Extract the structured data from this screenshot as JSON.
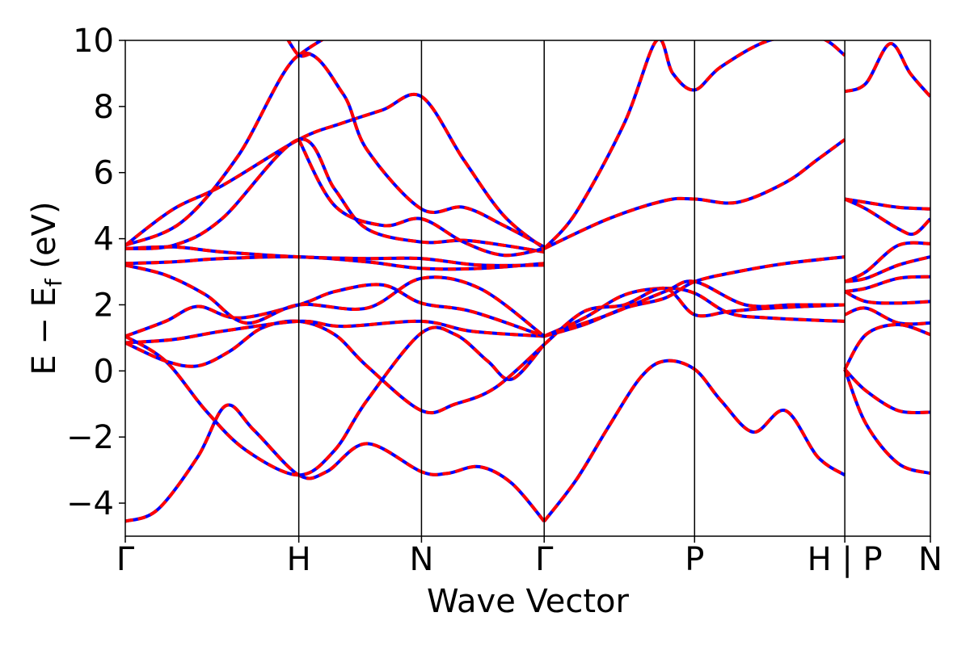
{
  "chart_data": {
    "type": "line",
    "title": "",
    "xlabel": "Wave Vector",
    "ylabel_parts": {
      "main": "E − E",
      "sub": "f",
      "unit": " (eV)"
    },
    "ylim": [
      -5,
      10
    ],
    "yticks": [
      -4,
      -2,
      0,
      2,
      4,
      6,
      8,
      10
    ],
    "ytick_labels": [
      "−4",
      "−2",
      "0",
      "2",
      "4",
      "6",
      "8",
      "10"
    ],
    "xlim": [
      0,
      1
    ],
    "kpoints": [
      {
        "label": "Γ",
        "x": 0.0
      },
      {
        "label": "H",
        "x": 0.2155
      },
      {
        "label": "N",
        "x": 0.3679
      },
      {
        "label": "Γ",
        "x": 0.5203
      },
      {
        "label": "P",
        "x": 0.7071
      },
      {
        "label": "H | P",
        "x": 0.8937
      },
      {
        "label": "N",
        "x": 1.0
      }
    ],
    "series_style": [
      {
        "color": "#0000ff",
        "dashed": false
      },
      {
        "color": "#ff0000",
        "dashed": true
      }
    ],
    "bands": [
      {
        "x": [
          0,
          0.04,
          0.09,
          0.125,
          0.16,
          0.2155,
          0.25,
          0.3,
          0.3679,
          0.4,
          0.44,
          0.48,
          0.5203
        ],
        "y": [
          -4.55,
          -4.2,
          -2.6,
          -1.05,
          -1.8,
          -3.15,
          -3.05,
          -2.2,
          -3.05,
          -3.1,
          -2.9,
          -3.4,
          -4.55
        ]
      },
      {
        "x": [
          0.5203,
          0.56,
          0.6,
          0.64,
          0.67,
          0.7071,
          0.74,
          0.78,
          0.82,
          0.86,
          0.8937
        ],
        "y": [
          -4.55,
          -3.3,
          -1.7,
          -0.2,
          0.3,
          0.05,
          -0.9,
          -1.85,
          -1.2,
          -2.6,
          -3.15
        ]
      },
      {
        "x": [
          0.8937,
          0.92,
          0.96,
          1.0
        ],
        "y": [
          0.05,
          -0.6,
          -1.2,
          -1.25
        ]
      },
      {
        "x": [
          0.0,
          0.05,
          0.1,
          0.15,
          0.2155,
          0.26,
          0.3,
          0.3679,
          0.41,
          0.45,
          0.48,
          0.5203
        ],
        "y": [
          1.05,
          0.3,
          -1.2,
          -2.4,
          -3.15,
          -2.4,
          -0.9,
          1.15,
          1.1,
          0.3,
          -0.25,
          0.8
        ]
      },
      {
        "x": [
          0.0,
          0.05,
          0.09,
          0.13,
          0.17,
          0.2155,
          0.26,
          0.3,
          0.3679,
          0.41,
          0.46,
          0.5203
        ],
        "y": [
          0.85,
          0.3,
          0.15,
          0.6,
          1.3,
          1.5,
          1.1,
          0.15,
          -1.2,
          -1.0,
          -0.5,
          0.8
        ]
      },
      {
        "x": [
          0.0,
          0.06,
          0.12,
          0.2155,
          0.27,
          0.3679,
          0.43,
          0.5203
        ],
        "y": [
          0.85,
          0.95,
          1.2,
          1.5,
          1.35,
          1.5,
          1.2,
          1.05
        ]
      },
      {
        "x": [
          0.0,
          0.05,
          0.09,
          0.14,
          0.2155,
          0.26,
          0.32,
          0.3679,
          0.43,
          0.5203
        ],
        "y": [
          1.05,
          1.5,
          1.95,
          1.6,
          2.0,
          2.4,
          2.6,
          2.05,
          1.8,
          1.05
        ]
      },
      {
        "x": [
          0.0,
          0.05,
          0.1,
          0.15,
          0.2155,
          0.3,
          0.3679,
          0.44,
          0.5203
        ],
        "y": [
          3.2,
          2.9,
          2.3,
          1.45,
          2.0,
          1.9,
          2.8,
          2.5,
          1.05
        ]
      },
      {
        "x": [
          0.5203,
          0.57,
          0.62,
          0.67,
          0.7071,
          0.75,
          0.8,
          0.8937
        ],
        "y": [
          1.05,
          1.6,
          2.3,
          2.5,
          2.35,
          1.75,
          1.6,
          1.5
        ]
      },
      {
        "x": [
          0.5203,
          0.57,
          0.62,
          0.67,
          0.7071,
          0.75,
          0.8,
          0.8937
        ],
        "y": [
          0.8,
          1.8,
          2.0,
          2.5,
          1.7,
          1.8,
          1.9,
          2.0
        ]
      },
      {
        "x": [
          0.5203,
          0.57,
          0.62,
          0.67,
          0.7071,
          0.76,
          0.82,
          0.8937
        ],
        "y": [
          1.05,
          1.4,
          1.9,
          2.2,
          2.7,
          3.0,
          3.25,
          3.45
        ]
      },
      {
        "x": [
          0.5203,
          0.6,
          0.67,
          0.7071,
          0.77,
          0.83,
          0.8937
        ],
        "y": [
          1.05,
          1.7,
          2.4,
          2.7,
          2.0,
          2.0,
          2.0
        ]
      },
      {
        "x": [
          0.0,
          0.06,
          0.12,
          0.2155,
          0.3,
          0.3679,
          0.44,
          0.5203
        ],
        "y": [
          3.25,
          3.3,
          3.4,
          3.45,
          3.3,
          3.1,
          3.1,
          3.25
        ]
      },
      {
        "x": [
          0.0,
          0.06,
          0.12,
          0.2155,
          0.3,
          0.3679,
          0.44,
          0.5203
        ],
        "y": [
          3.7,
          3.75,
          3.6,
          3.45,
          3.4,
          3.4,
          3.2,
          3.2
        ]
      },
      {
        "x": [
          0.0,
          0.06,
          0.12,
          0.2155,
          0.27,
          0.32,
          0.3679,
          0.42,
          0.47,
          0.5203
        ],
        "y": [
          3.8,
          4.9,
          5.6,
          7.0,
          7.5,
          7.9,
          8.3,
          6.4,
          4.7,
          3.7
        ]
      },
      {
        "x": [
          0.0,
          0.06,
          0.12,
          0.2155,
          0.26,
          0.3,
          0.3679,
          0.42,
          0.47,
          0.5203
        ],
        "y": [
          3.7,
          3.8,
          4.6,
          7.0,
          5.5,
          4.3,
          3.9,
          3.95,
          3.8,
          3.6
        ]
      },
      {
        "x": [
          0.0,
          0.07,
          0.14,
          0.2155,
          0.27,
          0.3,
          0.3679,
          0.42,
          0.47,
          0.5203
        ],
        "y": [
          3.8,
          4.5,
          6.5,
          9.55,
          8.4,
          6.7,
          4.9,
          4.95,
          4.4,
          3.75
        ]
      },
      {
        "x": [
          0.2155,
          0.26,
          0.32,
          0.3679,
          0.42,
          0.47,
          0.5203
        ],
        "y": [
          7.0,
          5.0,
          4.4,
          4.6,
          3.9,
          3.5,
          3.7
        ]
      },
      {
        "x": [
          0.2155,
          0.23,
          0.25
        ],
        "y": [
          9.55,
          9.8,
          10.1
        ]
      },
      {
        "x": [
          0.2,
          0.2155,
          0.23
        ],
        "y": [
          10.1,
          9.55,
          9.6
        ]
      },
      {
        "x": [
          0.5203,
          0.6,
          0.67,
          0.7071,
          0.76,
          0.82,
          0.86,
          0.8937
        ],
        "y": [
          3.7,
          4.6,
          5.15,
          5.2,
          5.1,
          5.7,
          6.4,
          7.0
        ]
      },
      {
        "x": [
          0.5203,
          0.56,
          0.62,
          0.66,
          0.68,
          0.7071,
          0.74,
          0.8,
          0.86,
          0.8937
        ],
        "y": [
          3.7,
          4.8,
          7.5,
          10.0,
          9.0,
          8.5,
          9.2,
          10.0,
          10.1,
          9.55
        ]
      },
      {
        "x": [
          0.8937,
          0.92,
          0.95,
          0.975,
          1.0
        ],
        "y": [
          8.45,
          8.7,
          9.9,
          9.0,
          8.3
        ]
      },
      {
        "x": [
          0.8937,
          0.92,
          0.96,
          1.0
        ],
        "y": [
          5.2,
          5.1,
          4.95,
          4.9
        ]
      },
      {
        "x": [
          0.8937,
          0.92,
          0.96,
          0.98,
          1.0
        ],
        "y": [
          5.2,
          4.9,
          4.3,
          4.15,
          4.6
        ]
      },
      {
        "x": [
          0.8937,
          0.92,
          0.96,
          1.0
        ],
        "y": [
          2.7,
          2.8,
          3.2,
          3.45
        ]
      },
      {
        "x": [
          0.8937,
          0.92,
          0.96,
          1.0
        ],
        "y": [
          2.7,
          3.0,
          3.8,
          3.85
        ]
      },
      {
        "x": [
          0.8937,
          0.92,
          0.96,
          1.0
        ],
        "y": [
          2.4,
          2.5,
          2.8,
          2.85
        ]
      },
      {
        "x": [
          0.8937,
          0.92,
          0.96,
          1.0
        ],
        "y": [
          2.4,
          2.1,
          2.05,
          2.1
        ]
      },
      {
        "x": [
          0.8937,
          0.92,
          0.96,
          1.0
        ],
        "y": [
          1.7,
          1.9,
          1.45,
          1.45
        ]
      },
      {
        "x": [
          0.8937,
          0.92,
          0.96,
          1.0
        ],
        "y": [
          0.05,
          1.1,
          1.4,
          1.1
        ]
      },
      {
        "x": [
          0.8937,
          0.92,
          0.96,
          1.0
        ],
        "y": [
          0.05,
          -1.6,
          -2.8,
          -3.1
        ]
      }
    ]
  }
}
